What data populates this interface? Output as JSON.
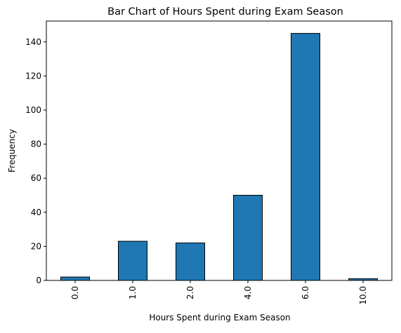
{
  "chart_data": {
    "type": "bar",
    "title": "Bar Chart of Hours Spent during Exam Season",
    "xlabel": "Hours Spent during Exam Season",
    "ylabel": "Frequency",
    "categories": [
      "0.0",
      "1.0",
      "2.0",
      "4.0",
      "6.0",
      "10.0"
    ],
    "values": [
      2,
      23,
      22,
      50,
      145,
      1
    ],
    "ylim": [
      0,
      152.25
    ],
    "yticks": [
      0,
      20,
      40,
      60,
      80,
      100,
      120,
      140
    ],
    "grid": false,
    "legend": "none",
    "bar_color": "#1f77b4",
    "edge_color": "#000000"
  }
}
